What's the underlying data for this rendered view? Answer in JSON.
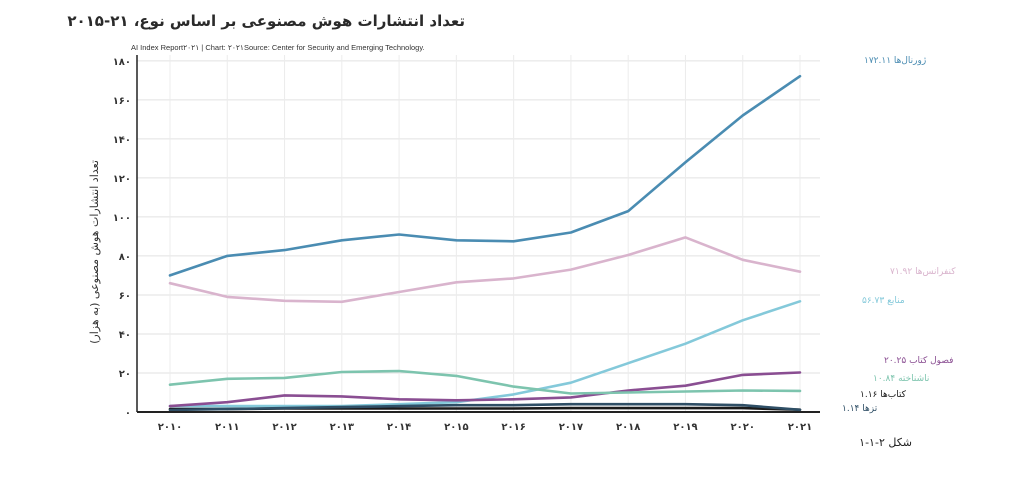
{
  "title": "تعداد انتشارات هوش مصنوعی بر اساس نوع، ۲۱-۲۰۱۵",
  "source": "AI Index Report۲۰۲۱ | Chart: ۲۰۲۱Source: Center for Security and Emerging Technology.",
  "figure_caption": "شکل ۲-۱-۱",
  "chart_data": {
    "type": "line",
    "ylabel": "تعداد انتشارات هوش مصنوعی (به هزار)",
    "xlabel": "",
    "x": [
      "۲۰۱۰",
      "۲۰۱۱",
      "۲۰۱۲",
      "۲۰۱۳",
      "۲۰۱۴",
      "۲۰۱۵",
      "۲۰۱۶",
      "۲۰۱۷",
      "۲۰۱۸",
      "۲۰۱۹",
      "۲۰۲۰",
      "۲۰۲۱"
    ],
    "yticks": [
      0,
      20,
      40,
      60,
      80,
      100,
      120,
      140,
      160,
      180
    ],
    "ytick_labels": [
      "۰",
      "۲۰",
      "۴۰",
      "۶۰",
      "۸۰",
      "۱۰۰",
      "۱۲۰",
      "۱۴۰",
      "۱۶۰",
      "۱۸۰"
    ],
    "ylim": [
      0,
      183
    ],
    "grid": true,
    "series": [
      {
        "label": "ژورنال‌ها ۱۷۲.۱۱",
        "color": "#4a8cb2",
        "values": [
          70,
          80,
          83,
          88,
          91,
          88,
          87.5,
          92,
          103,
          128,
          152,
          172.11
        ]
      },
      {
        "label": "کنفرانس‌ها ۷۱.۹۲",
        "color": "#d9b4cd",
        "values": [
          66,
          59,
          57,
          56.5,
          61.5,
          66.5,
          68.5,
          73,
          80.5,
          89.5,
          78,
          71.92
        ]
      },
      {
        "label": "منابع ۵۶.۷۳",
        "color": "#84c9da",
        "values": [
          3,
          3,
          3,
          3,
          4,
          5,
          9,
          15,
          25,
          35,
          47,
          56.73
        ]
      },
      {
        "label": "فصول کتاب ۲۰.۲۵",
        "color": "#8a4e92",
        "values": [
          3,
          5,
          8.5,
          8,
          6.5,
          6,
          6.5,
          7.5,
          11,
          13.5,
          19,
          20.25
        ]
      },
      {
        "label": "ناشناخته ۱۰.۸۴",
        "color": "#7dc4ae",
        "values": [
          14,
          17,
          17.5,
          20.5,
          21,
          18.5,
          13,
          9.5,
          10,
          10.5,
          11,
          10.84
        ]
      },
      {
        "label": "کتاب‌ها ۱.۱۶",
        "color": "#1a1a1a",
        "values": [
          1.5,
          1.5,
          1.8,
          1.8,
          1.8,
          1.8,
          1.8,
          2,
          2,
          2,
          2,
          1.16
        ]
      },
      {
        "label": "تزها ۱.۱۴",
        "color": "#2f4f66",
        "values": [
          1,
          1.5,
          2,
          2.5,
          3,
          3.5,
          3.5,
          4,
          4,
          4,
          3.5,
          1.14
        ]
      }
    ]
  }
}
